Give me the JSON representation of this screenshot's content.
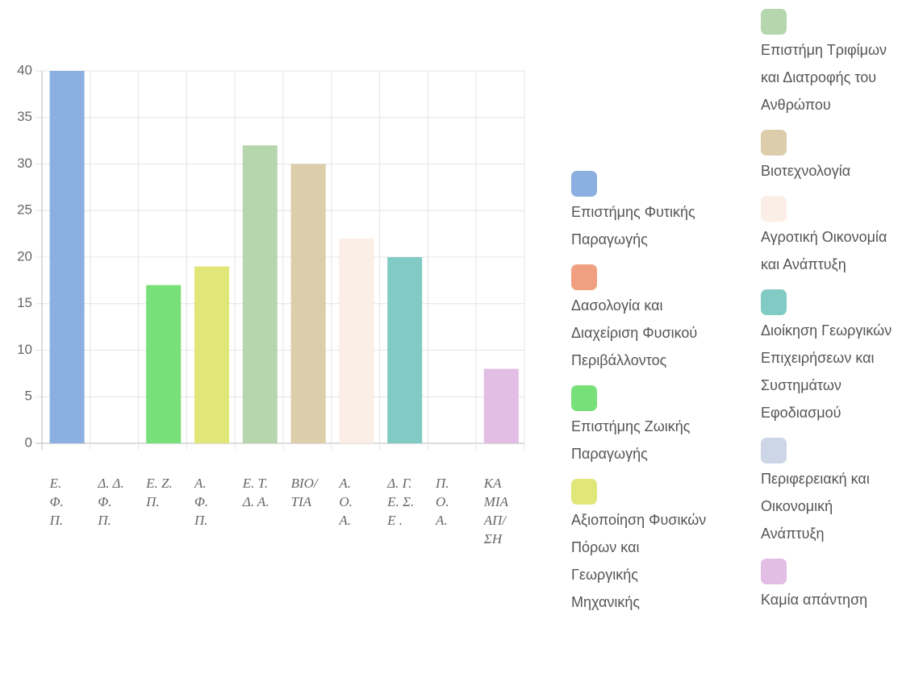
{
  "chart_data": {
    "type": "bar",
    "categories": [
      "Ε. Φ. Π.",
      "Δ. Δ. Φ. Π.",
      "Ε. Ζ. Π.",
      "Α. Φ. Π.",
      "Ε. Τ. Δ. Α.",
      "ΒΙΟ/ΤΙΑ",
      "Α. Ο. Α.",
      "Δ. Γ. Ε. Σ. Ε .",
      "Π. Ο. Α.",
      "ΚΑΜΙΑ ΑΠ/ΣΗ"
    ],
    "values": [
      40,
      0,
      17,
      19,
      32,
      30,
      22,
      20,
      0,
      8
    ],
    "colors": [
      "#8aafe0",
      "#f0a080",
      "#78e078",
      "#e0e678",
      "#b6d6ae",
      "#dccdab",
      "#fbeee6",
      "#82cbc4",
      "#cdd6e6",
      "#e2bde4"
    ],
    "legend": [
      "Επιστήμης Φυτικής Παραγωγής",
      "Δασολογία και Διαχείριση Φυσικού Περιβάλλοντος",
      "Επιστήμης Ζωικής Παραγωγής",
      "Αξιοποίηση Φυσικών Πόρων και Γεωργικής Μηχανικής",
      "Επιστήμη Τριφίμων και Διατροφής του Ανθρώπου",
      "Βιοτεχνολογία",
      "Αγροτική Οικονομία και Ανάπτυξη",
      "Διοίκηση Γεωργικών Επιχειρήσεων και Συστημάτων Εφοδιασμού",
      "Περιφερειακή και Οικονομική Ανάπτυξη",
      "Καμία απάντηση"
    ],
    "ylim": [
      0,
      40
    ],
    "yticks": [
      0,
      5,
      10,
      15,
      20,
      25,
      30,
      35,
      40
    ],
    "grid": true
  }
}
